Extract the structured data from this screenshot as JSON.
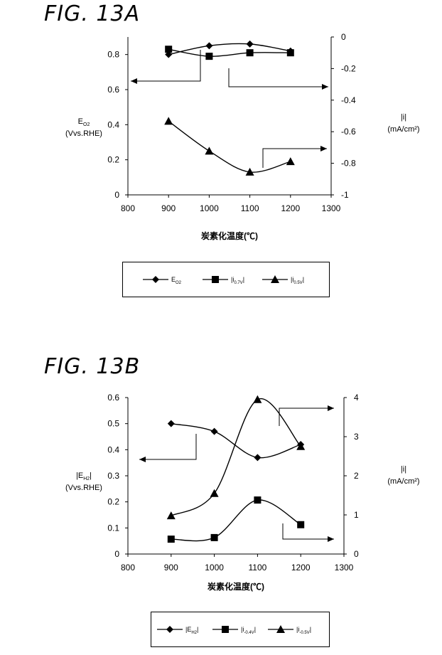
{
  "chart_data": [
    {
      "type": "line",
      "figure_label": "FIG. 13A",
      "xlabel": "炭素化温度(℃)",
      "y_left_label": [
        "E",
        "O2",
        "(Vvs.RHE)"
      ],
      "y_right_label": [
        "|i|",
        "(mA/cm²)"
      ],
      "xlim": [
        800,
        1300
      ],
      "xticks": [
        800,
        900,
        1000,
        1100,
        1200,
        1300
      ],
      "ylim_left": [
        0,
        0.9
      ],
      "yticks_left": [
        0,
        0.2,
        0.4,
        0.6,
        0.8
      ],
      "ylim_right": [
        -1,
        0
      ],
      "yticks_right": [
        0,
        -0.2,
        -0.4,
        -0.6,
        -0.8,
        -1
      ],
      "series": [
        {
          "name": "E",
          "sub": "O2",
          "marker": "diamond",
          "axis": "left",
          "x": [
            900,
            1000,
            1100,
            1200
          ],
          "values": [
            0.8,
            0.85,
            0.86,
            0.82
          ]
        },
        {
          "name": "|i",
          "sub": "0.7V",
          "suffix": "|",
          "marker": "square",
          "axis": "left",
          "x": [
            900,
            1000,
            1100,
            1200
          ],
          "values": [
            0.83,
            0.79,
            0.81,
            0.81
          ]
        },
        {
          "name": "|i",
          "sub": "0.5V",
          "suffix": "|",
          "marker": "triangle",
          "axis": "left",
          "x": [
            900,
            1000,
            1100,
            1200
          ],
          "values": [
            0.42,
            0.25,
            0.13,
            0.19
          ]
        }
      ]
    },
    {
      "type": "line",
      "figure_label": "FIG. 13B",
      "xlabel": "炭素化温度(℃)",
      "y_left_label": [
        "|E",
        "H2",
        "|",
        "(Vvs.RHE)"
      ],
      "y_right_label": [
        "|i|",
        "(mA/cm²)"
      ],
      "xlim": [
        800,
        1300
      ],
      "xticks": [
        800,
        900,
        1000,
        1100,
        1200,
        1300
      ],
      "ylim_left": [
        0,
        0.6
      ],
      "yticks_left": [
        0,
        0.1,
        0.2,
        0.3,
        0.4,
        0.5,
        0.6
      ],
      "ylim_right": [
        0,
        4
      ],
      "yticks_right": [
        0,
        1,
        2,
        3,
        4
      ],
      "series": [
        {
          "name": "|E",
          "sub": "H2",
          "suffix": "|",
          "marker": "diamond",
          "axis": "left",
          "x": [
            900,
            1000,
            1100,
            1200
          ],
          "values": [
            0.5,
            0.47,
            0.37,
            0.42
          ]
        },
        {
          "name": "|i",
          "sub": "-0.4V",
          "suffix": "|",
          "marker": "square",
          "axis": "right",
          "x": [
            900,
            1000,
            1100,
            1200
          ],
          "values": [
            0.38,
            0.42,
            1.38,
            0.75
          ]
        },
        {
          "name": "|i",
          "sub": "-0.5V",
          "suffix": "|",
          "marker": "triangle",
          "axis": "right",
          "x": [
            900,
            1000,
            1100,
            1200
          ],
          "values": [
            0.98,
            1.55,
            3.95,
            2.75
          ]
        }
      ]
    }
  ]
}
